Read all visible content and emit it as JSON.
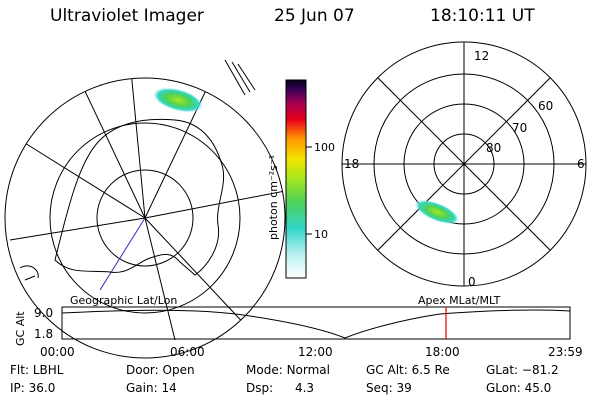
{
  "header": {
    "instrument": "Ultraviolet Imager",
    "date": "25 Jun 07",
    "time": "18:10:11 UT"
  },
  "colorbar": {
    "unit_label": "photon cm⁻²s⁻¹",
    "ticks": [
      "100",
      "10"
    ]
  },
  "polar_plot": {
    "mlt_labels": {
      "top": "12",
      "left": "18",
      "right": "6",
      "bottom": "0"
    },
    "mlat_labels": [
      "60",
      "70",
      "80"
    ]
  },
  "timeline": {
    "y_label": "GC Alt",
    "y_ticks": [
      "9.0",
      "1.8"
    ],
    "left_title": "Geographic Lat/Lon",
    "right_title": "Apex  MLat/MLT",
    "x_ticks": [
      "00:00",
      "06:00",
      "12:00",
      "18:00",
      "23:59"
    ]
  },
  "status": {
    "row1": [
      {
        "label": "Flt:",
        "value": "LBHL"
      },
      {
        "label": "Door:",
        "value": "Open"
      },
      {
        "label": "Mode:",
        "value": "Normal"
      },
      {
        "label": "GC Alt:",
        "value": "6.5 Re"
      },
      {
        "label": "GLat:",
        "value": "−81.2"
      }
    ],
    "row2": [
      {
        "label": "IP:",
        "value": "36.0"
      },
      {
        "label": "Gain:",
        "value": "14"
      },
      {
        "label": "Dsp:",
        "value": "4.3"
      },
      {
        "label": "Seq:",
        "value": "39"
      },
      {
        "label": "GLon:",
        "value": "45.0"
      }
    ]
  },
  "colors": {
    "marker": "#e00000",
    "lines": "#000000"
  }
}
